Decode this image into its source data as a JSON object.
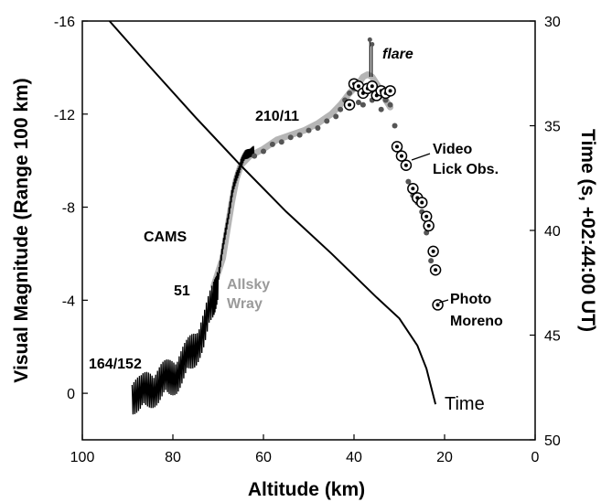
{
  "chart_data": {
    "type": "scatter",
    "title": "",
    "xlabel": "Altitude (km)",
    "ylabel": "Visual Magnitude (Range 100 km)",
    "y2label": "Time (s, +02:44:00 UT)",
    "xlim": [
      100,
      0
    ],
    "ylim": [
      2,
      -16
    ],
    "y2lim": [
      50,
      30
    ],
    "x_ticks": [
      "100",
      "80",
      "60",
      "40",
      "20",
      "0"
    ],
    "y_ticks": [
      "-16",
      "-12",
      "-8",
      "-4",
      "0"
    ],
    "y2_ticks": [
      "30",
      "35",
      "40",
      "45",
      "50"
    ],
    "grid": false,
    "annotations": {
      "flare": "flare",
      "lick_line1": "Video",
      "lick_line2": "Lick Obs.",
      "cams_label": "CAMS",
      "cams_count_top": "210/11",
      "cams_count_mid": "51",
      "cams_count_bottom": "164/152",
      "allsky_line1": "Allsky",
      "allsky_line2": "Wray",
      "photo_line1": "Photo",
      "photo_line2": "Moreno",
      "time_label": "Time"
    },
    "series": [
      {
        "name": "CAMS",
        "color": "#000000",
        "x": [
          89,
          87,
          85,
          83,
          81,
          79,
          77,
          75,
          73,
          71,
          70,
          69,
          68,
          67,
          66,
          65,
          64,
          63,
          62
        ],
        "y": [
          0,
          0.1,
          -0.2,
          -0.4,
          -0.6,
          -0.9,
          -1.4,
          -2.0,
          -2.8,
          -4.0,
          -5.0,
          -6.2,
          -7.4,
          -8.5,
          -9.3,
          -9.9,
          -10.2,
          -10.4,
          -10.4
        ]
      },
      {
        "name": "Allsky Wray",
        "color": "#b5b5b5",
        "x": [
          71,
          69,
          68,
          67,
          66,
          65,
          64,
          63,
          62,
          60,
          57,
          54,
          51,
          48,
          45,
          43,
          41,
          39,
          38,
          37,
          36,
          35,
          34,
          33,
          32
        ],
        "y": [
          -4.6,
          -5.8,
          -7.0,
          -8.2,
          -9.2,
          -9.8,
          -10.0,
          -10.2,
          -10.3,
          -10.5,
          -10.9,
          -11.1,
          -11.3,
          -11.6,
          -12.0,
          -12.4,
          -12.9,
          -13.3,
          -13.6,
          -13.7,
          -13.6,
          -13.3,
          -13.0,
          -12.6,
          -12.3
        ]
      },
      {
        "name": "Video Lick Obs.",
        "color": "#555555",
        "x": [
          62,
          60,
          58,
          56,
          54,
          52,
          50,
          48,
          46,
          44,
          43,
          42,
          41,
          40,
          39,
          38,
          37,
          36,
          35,
          34,
          33,
          32,
          31,
          30,
          29,
          28,
          27,
          26,
          25,
          24,
          23,
          22
        ],
        "y": [
          -10.2,
          -10.4,
          -10.7,
          -10.8,
          -11.0,
          -11.1,
          -11.3,
          -11.4,
          -11.7,
          -11.9,
          -12.2,
          -12.6,
          -12.9,
          -13.1,
          -12.5,
          -12.4,
          -13.2,
          -12.6,
          -13.0,
          -12.2,
          -12.6,
          -12.4,
          -11.5,
          -10.5,
          -9.8,
          -9.1,
          -8.5,
          -8.2,
          -7.8,
          -6.9,
          -5.7,
          -5.4
        ]
      },
      {
        "name": "Photo Moreno",
        "color": "#000000",
        "x": [
          41,
          40,
          39,
          38,
          37,
          36,
          35,
          34,
          33,
          32,
          30.5,
          29.5,
          28.5,
          27,
          26,
          25,
          24,
          23.5,
          22.5,
          22,
          21.5
        ],
        "y": [
          -12.4,
          -13.3,
          -13.2,
          -12.9,
          -13.1,
          -13.2,
          -12.8,
          -13.0,
          -12.9,
          -13.0,
          -10.6,
          -10.2,
          -9.8,
          -8.8,
          -8.4,
          -8.2,
          -7.6,
          -7.2,
          -6.1,
          -5.3,
          -3.8
        ]
      },
      {
        "name": "flare",
        "color": "#555555",
        "x": [
          36.5,
          36.0
        ],
        "y": [
          -15.2,
          -15.0
        ]
      },
      {
        "name": "Time",
        "color": "#000000",
        "axis": "right",
        "x": [
          94,
          85,
          75,
          65,
          55,
          45,
          35,
          30,
          26,
          24,
          22
        ],
        "y": [
          30,
          32.2,
          34.6,
          36.9,
          39.1,
          41.1,
          43.2,
          44.2,
          45.5,
          46.6,
          48.3
        ]
      }
    ]
  }
}
